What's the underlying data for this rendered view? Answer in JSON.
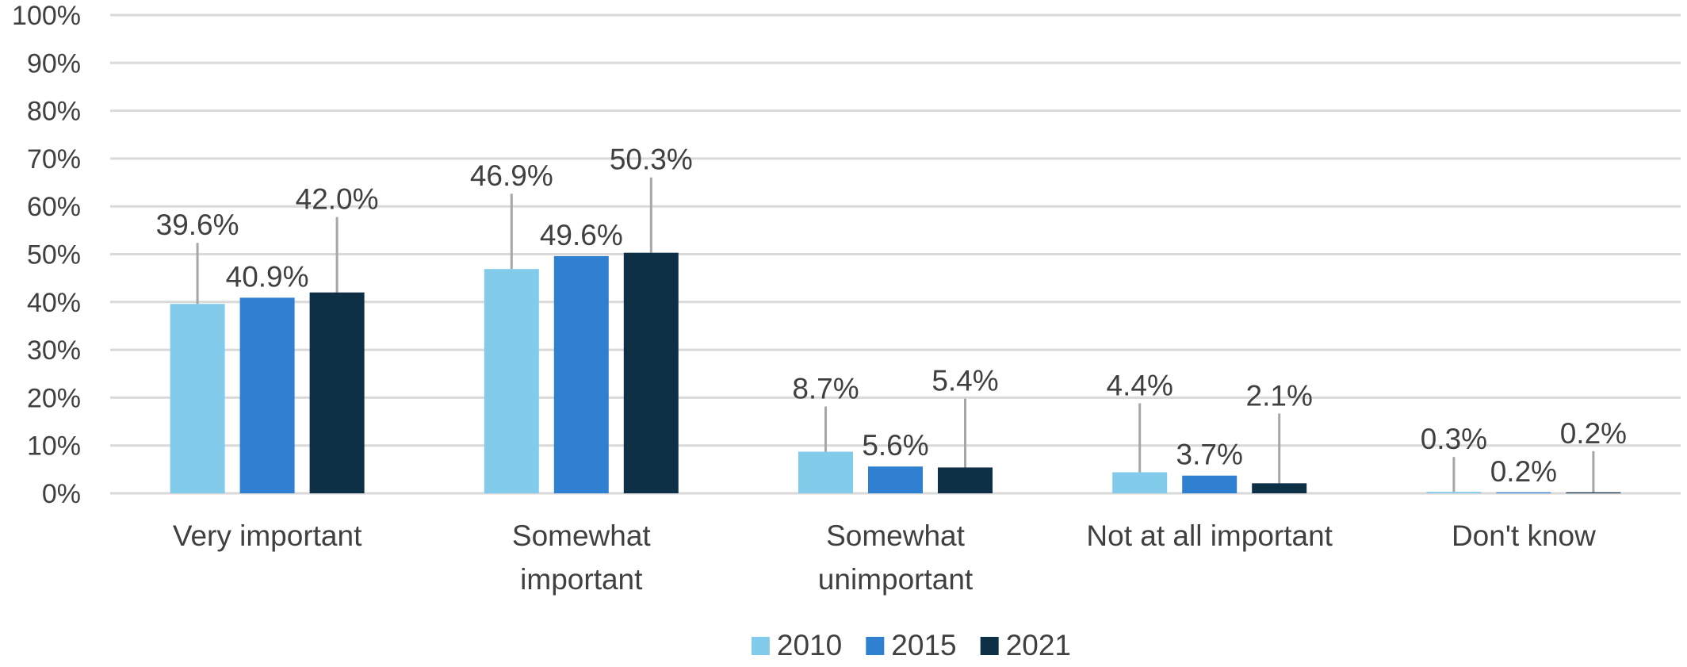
{
  "chart_data": {
    "type": "bar",
    "categories": [
      "Very important",
      "Somewhat important",
      "Somewhat unimportant",
      "Not at all important",
      "Don't know"
    ],
    "category_lines": [
      [
        "Very important"
      ],
      [
        "Somewhat",
        "important"
      ],
      [
        "Somewhat",
        "unimportant"
      ],
      [
        "Not at all important"
      ],
      [
        "Don't know"
      ]
    ],
    "series": [
      {
        "name": "2010",
        "color": "#83CBEB",
        "values": [
          39.6,
          46.9,
          8.7,
          4.4,
          0.3
        ]
      },
      {
        "name": "2015",
        "color": "#2F80D1",
        "values": [
          40.9,
          49.6,
          5.6,
          3.7,
          0.2
        ]
      },
      {
        "name": "2021",
        "color": "#0E3047",
        "values": [
          42.0,
          50.3,
          5.4,
          2.1,
          0.2
        ]
      }
    ],
    "data_labels": [
      [
        "39.6%",
        "46.9%",
        "8.7%",
        "4.4%",
        "0.3%"
      ],
      [
        "40.9%",
        "49.6%",
        "5.6%",
        "3.7%",
        "0.2%"
      ],
      [
        "42.0%",
        "50.3%",
        "5.4%",
        "2.1%",
        "0.2%"
      ]
    ],
    "y_ticks": [
      "0%",
      "10%",
      "20%",
      "30%",
      "40%",
      "50%",
      "60%",
      "70%",
      "80%",
      "90%",
      "100%"
    ],
    "ylim": [
      0,
      100
    ],
    "grid": true,
    "legend_position": "bottom"
  }
}
